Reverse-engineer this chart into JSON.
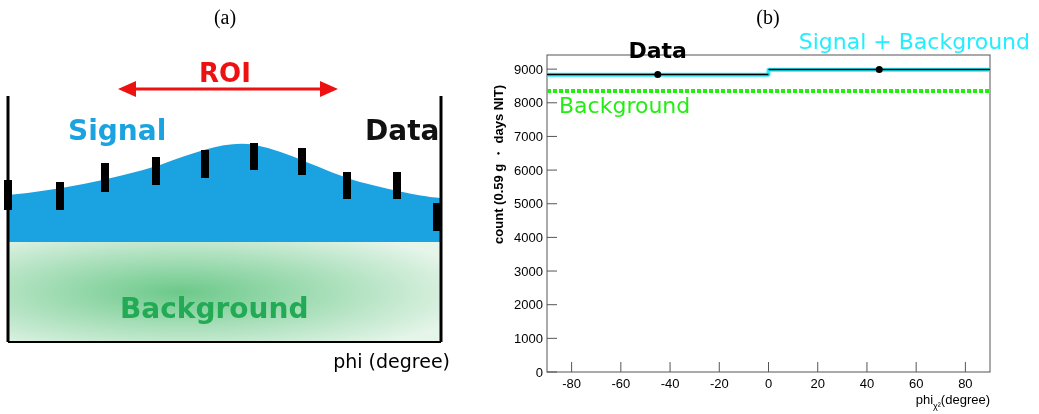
{
  "chart_data": [
    {
      "type": "other",
      "title": "(a)",
      "xlabel": "phi (degree)",
      "annotations": [
        "ROI",
        "Signal",
        "Data",
        "Background"
      ]
    },
    {
      "type": "line",
      "title": "(b)",
      "xlabel": "phi$_{χ²}$(degree)",
      "ylabel": "count (0.59 g ・ days NIT)",
      "xlim": [
        -90,
        90
      ],
      "ylim": [
        0,
        9420
      ],
      "xticks": [
        -80,
        -60,
        -40,
        -20,
        0,
        20,
        40,
        60,
        80
      ],
      "yticks": [
        0,
        1000,
        2000,
        3000,
        4000,
        5000,
        6000,
        7000,
        8000,
        9000
      ],
      "grid": false,
      "series": [
        {
          "name": "Background",
          "type": "line",
          "color": "#22ee11",
          "line_style": "dashed",
          "x": [
            -90,
            90
          ],
          "values": [
            8350,
            8350
          ]
        },
        {
          "name": "Signal + Background",
          "type": "step",
          "color": "#22eeff",
          "x": [
            -90,
            0,
            90
          ],
          "values": [
            8830,
            8980,
            8980
          ]
        },
        {
          "name": "Data",
          "type": "scatter",
          "color": "#000000",
          "marker": "circle",
          "x": [
            -45,
            45
          ],
          "values": [
            8840,
            8990
          ],
          "xerrors": [
            45,
            45
          ]
        }
      ]
    }
  ]
}
